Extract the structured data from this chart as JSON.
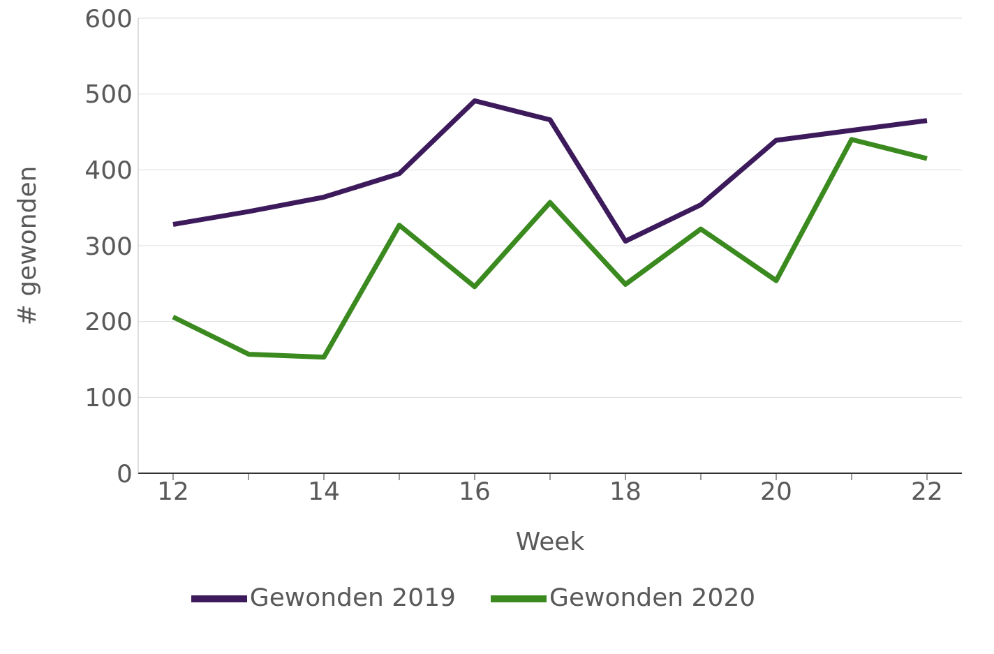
{
  "chart_data": {
    "type": "line",
    "xlabel": "Week",
    "ylabel": "# gewonden",
    "categories": [
      "12",
      null,
      "14",
      null,
      "16",
      null,
      "18",
      null,
      "20",
      null,
      "22"
    ],
    "series": [
      {
        "name": "Gewonden 2019",
        "color": "#3c1a5b",
        "values": [
          328,
          345,
          364,
          395,
          491,
          466,
          306,
          354,
          439,
          452,
          465
        ]
      },
      {
        "name": "Gewonden 2020",
        "color": "#3a8a1f",
        "values": [
          206,
          157,
          153,
          327,
          246,
          357,
          249,
          322,
          254,
          440,
          415
        ]
      }
    ],
    "ylim": [
      0,
      600
    ],
    "yticks": [
      0,
      100,
      200,
      300,
      400,
      500,
      600
    ],
    "grid": "y",
    "legend": "bottom",
    "marker": "none",
    "line_style": "solid"
  }
}
